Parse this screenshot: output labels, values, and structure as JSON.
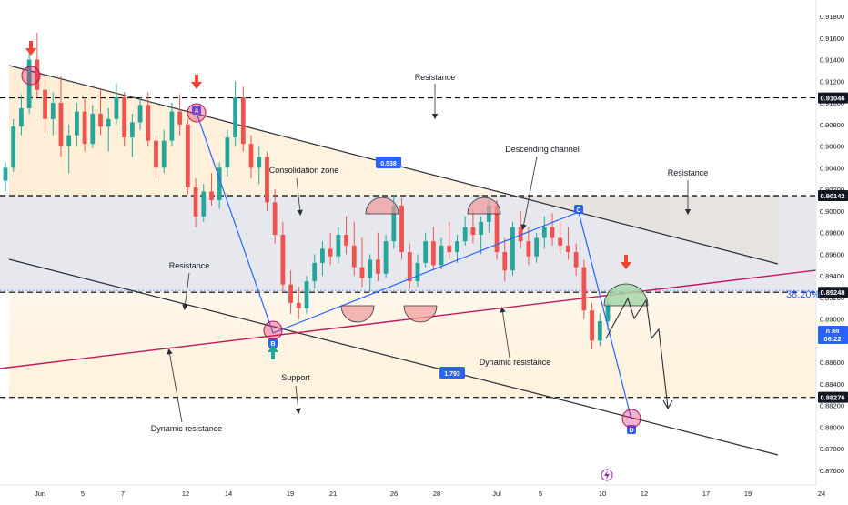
{
  "chart_data": {
    "type": "candlestick",
    "price_axis": {
      "ylim": [
        0.8755,
        0.9215
      ],
      "ticks": [
        "0.91800",
        "0.91600",
        "0.91400",
        "0.91200",
        "0.91000",
        "0.90800",
        "0.90600",
        "0.90400",
        "0.90200",
        "0.90000",
        "0.89800",
        "0.89600",
        "0.89400",
        "0.89200",
        "0.89000",
        "0.88800",
        "0.88600",
        "0.88400",
        "0.88200",
        "0.88000",
        "0.87800",
        "0.87600"
      ]
    },
    "time_axis": {
      "labels": [
        "Jun",
        "5",
        "7",
        "12",
        "14",
        "19",
        "21",
        "26",
        "28",
        "Jul",
        "5",
        "10",
        "12",
        "17",
        "19",
        "24"
      ]
    },
    "price_tags": [
      {
        "value": "0.91046",
        "style": "dark"
      },
      {
        "value": "0.90142",
        "style": "dark"
      },
      {
        "value": "0.89248",
        "style": "dark"
      },
      {
        "value": "0.88276",
        "style": "dark"
      },
      {
        "value": "0.89",
        "style": "blue"
      },
      {
        "value": "06:22",
        "style": "blue"
      }
    ],
    "levels": [
      0.91046,
      0.90142,
      0.89248,
      0.88276
    ],
    "consolidation_zone": [
      0.89248,
      0.90142
    ],
    "fib_label": "38.20%",
    "annotations": [
      {
        "text": "Resistance",
        "anchor": "top-center"
      },
      {
        "text": "Descending channel",
        "anchor": "upper-middle"
      },
      {
        "text": "Resistance",
        "anchor": "upper-right"
      },
      {
        "text": "Consolidation zone",
        "anchor": "upper-left-middle"
      },
      {
        "text": "Resistance",
        "anchor": "left-middle"
      },
      {
        "text": "Dynamic resistance",
        "anchor": "center"
      },
      {
        "text": "Support",
        "anchor": "lower-left-middle"
      },
      {
        "text": "Dynamic resistance",
        "anchor": "lower-left"
      }
    ],
    "channel_labels": [
      "0.538",
      "1.793"
    ],
    "points": [
      "A",
      "B",
      "C",
      "D"
    ],
    "candles": [
      [
        0.9028,
        0.9045,
        0.9018,
        0.904
      ],
      [
        0.904,
        0.9085,
        0.9036,
        0.9078
      ],
      [
        0.9078,
        0.9108,
        0.907,
        0.9095
      ],
      [
        0.9095,
        0.915,
        0.909,
        0.914
      ],
      [
        0.914,
        0.9165,
        0.9105,
        0.9112
      ],
      [
        0.9112,
        0.9125,
        0.9072,
        0.9085
      ],
      [
        0.9085,
        0.911,
        0.907,
        0.91
      ],
      [
        0.91,
        0.9125,
        0.905,
        0.906
      ],
      [
        0.906,
        0.908,
        0.9035,
        0.907
      ],
      [
        0.907,
        0.91,
        0.906,
        0.9092
      ],
      [
        0.9092,
        0.9105,
        0.9055,
        0.9062
      ],
      [
        0.9062,
        0.9098,
        0.9058,
        0.909
      ],
      [
        0.909,
        0.9112,
        0.907,
        0.9078
      ],
      [
        0.9078,
        0.9095,
        0.9055,
        0.9085
      ],
      [
        0.9085,
        0.9118,
        0.908,
        0.9105
      ],
      [
        0.9105,
        0.911,
        0.906,
        0.9068
      ],
      [
        0.9068,
        0.909,
        0.905,
        0.9082
      ],
      [
        0.9082,
        0.9105,
        0.9075,
        0.9098
      ],
      [
        0.9098,
        0.911,
        0.906,
        0.9065
      ],
      [
        0.9065,
        0.907,
        0.903,
        0.904
      ],
      [
        0.904,
        0.9075,
        0.9035,
        0.9065
      ],
      [
        0.9065,
        0.91,
        0.906,
        0.9092
      ],
      [
        0.9092,
        0.9108,
        0.907,
        0.908
      ],
      [
        0.908,
        0.9085,
        0.9015,
        0.9022
      ],
      [
        0.9022,
        0.903,
        0.8985,
        0.8995
      ],
      [
        0.8995,
        0.9025,
        0.899,
        0.9018
      ],
      [
        0.9018,
        0.9035,
        0.9005,
        0.901
      ],
      [
        0.901,
        0.9045,
        0.9002,
        0.904
      ],
      [
        0.904,
        0.9075,
        0.9032,
        0.9068
      ],
      [
        0.9068,
        0.912,
        0.906,
        0.9105
      ],
      [
        0.9105,
        0.9115,
        0.9055,
        0.9062
      ],
      [
        0.9062,
        0.907,
        0.903,
        0.904
      ],
      [
        0.904,
        0.906,
        0.9025,
        0.905
      ],
      [
        0.905,
        0.9055,
        0.9,
        0.9008
      ],
      [
        0.9008,
        0.902,
        0.897,
        0.8978
      ],
      [
        0.8978,
        0.899,
        0.8925,
        0.8932
      ],
      [
        0.8932,
        0.8945,
        0.8905,
        0.8915
      ],
      [
        0.8915,
        0.893,
        0.89,
        0.891
      ],
      [
        0.891,
        0.894,
        0.8905,
        0.8935
      ],
      [
        0.8935,
        0.896,
        0.8928,
        0.8952
      ],
      [
        0.8952,
        0.8972,
        0.894,
        0.8965
      ],
      [
        0.8965,
        0.898,
        0.895,
        0.8958
      ],
      [
        0.8958,
        0.8985,
        0.8952,
        0.8978
      ],
      [
        0.8978,
        0.8995,
        0.896,
        0.8968
      ],
      [
        0.8968,
        0.899,
        0.894,
        0.8948
      ],
      [
        0.8948,
        0.8975,
        0.893,
        0.8938
      ],
      [
        0.8938,
        0.896,
        0.8925,
        0.8955
      ],
      [
        0.8955,
        0.898,
        0.8935,
        0.8942
      ],
      [
        0.8942,
        0.8978,
        0.8938,
        0.8972
      ],
      [
        0.8972,
        0.9015,
        0.8965,
        0.9005
      ],
      [
        0.9005,
        0.9012,
        0.8955,
        0.8962
      ],
      [
        0.8962,
        0.897,
        0.8928,
        0.8935
      ],
      [
        0.8935,
        0.896,
        0.893,
        0.8952
      ],
      [
        0.8952,
        0.898,
        0.8948,
        0.8972
      ],
      [
        0.8972,
        0.8985,
        0.8945,
        0.895
      ],
      [
        0.895,
        0.8975,
        0.8946,
        0.8968
      ],
      [
        0.8968,
        0.899,
        0.8955,
        0.8962
      ],
      [
        0.8962,
        0.8978,
        0.8952,
        0.8972
      ],
      [
        0.8972,
        0.8995,
        0.8968,
        0.8985
      ],
      [
        0.8985,
        0.9002,
        0.897,
        0.8978
      ],
      [
        0.8978,
        0.8995,
        0.896,
        0.899
      ],
      [
        0.899,
        0.9012,
        0.898,
        0.9005
      ],
      [
        0.9005,
        0.901,
        0.8955,
        0.8962
      ],
      [
        0.8962,
        0.8975,
        0.8935,
        0.8945
      ],
      [
        0.8945,
        0.899,
        0.894,
        0.8985
      ],
      [
        0.8985,
        0.9,
        0.8965,
        0.8972
      ],
      [
        0.8972,
        0.8985,
        0.895,
        0.8958
      ],
      [
        0.8958,
        0.898,
        0.8952,
        0.8975
      ],
      [
        0.8975,
        0.8995,
        0.8965,
        0.8985
      ],
      [
        0.8985,
        0.8998,
        0.8968,
        0.8975
      ],
      [
        0.8975,
        0.899,
        0.896,
        0.8968
      ],
      [
        0.8968,
        0.8985,
        0.8955,
        0.8962
      ],
      [
        0.8962,
        0.897,
        0.894,
        0.8948
      ],
      [
        0.8948,
        0.8955,
        0.89,
        0.8908
      ],
      [
        0.8908,
        0.8915,
        0.8872,
        0.888
      ],
      [
        0.888,
        0.8905,
        0.8875,
        0.8898
      ],
      [
        0.8898,
        0.8925,
        0.889,
        0.8915
      ]
    ]
  },
  "colors": {
    "up": "#26a69a",
    "down": "#ef5350",
    "channel_line": "#2a2e39",
    "path_line": "#2962ff",
    "magenta_line": "#c2185b",
    "zone_fill": "#b8bccb",
    "upper_fill": "#ffe0b2",
    "fib_text": "#2962ff"
  }
}
